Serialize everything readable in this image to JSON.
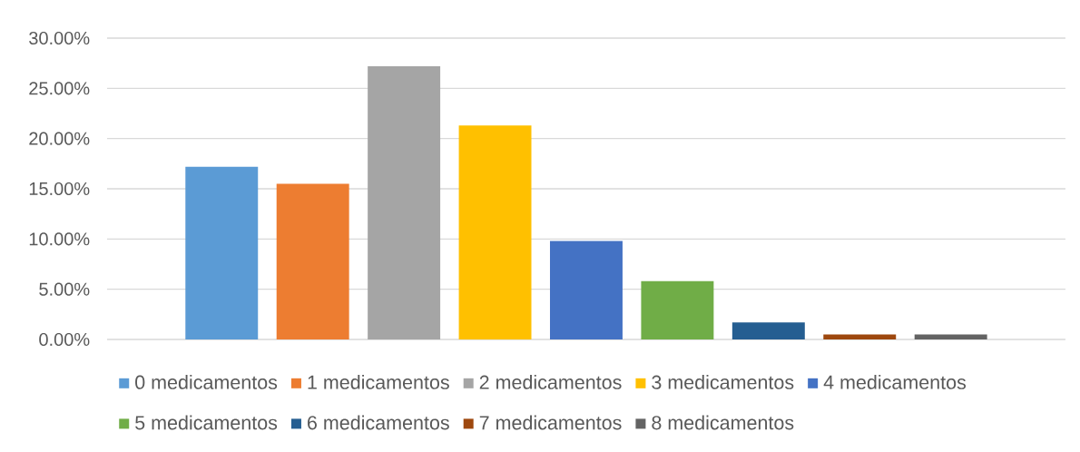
{
  "chart_data": {
    "type": "bar",
    "categories": [
      null
    ],
    "series": [
      {
        "name": "0 medicamentos",
        "color": "#5b9bd5",
        "values": [
          17.2
        ]
      },
      {
        "name": "1 medicamentos",
        "color": "#ed7d31",
        "values": [
          15.5
        ]
      },
      {
        "name": "2 medicamentos",
        "color": "#a5a5a5",
        "values": [
          27.2
        ]
      },
      {
        "name": "3 medicamentos",
        "color": "#ffc000",
        "values": [
          21.3
        ]
      },
      {
        "name": "4 medicamentos",
        "color": "#4472c4",
        "values": [
          9.8
        ]
      },
      {
        "name": "5 medicamentos",
        "color": "#70ad47",
        "values": [
          5.8
        ]
      },
      {
        "name": "6 medicamentos",
        "color": "#255e91",
        "values": [
          1.7
        ]
      },
      {
        "name": "7 medicamentos",
        "color": "#9e480e",
        "values": [
          0.5
        ]
      },
      {
        "name": "8 medicamentos",
        "color": "#636363",
        "values": [
          0.5
        ]
      }
    ],
    "ylim": [
      0,
      30
    ],
    "yticks": [
      {
        "value": 0,
        "label": "0.00%"
      },
      {
        "value": 5,
        "label": "5.00%"
      },
      {
        "value": 10,
        "label": "10.00%"
      },
      {
        "value": 15,
        "label": "15.00%"
      },
      {
        "value": 20,
        "label": "20.00%"
      },
      {
        "value": 25,
        "label": "25.00%"
      },
      {
        "value": 30,
        "label": "30.00%"
      }
    ],
    "grid": "y",
    "legend": "bottom",
    "tick_labels": "y"
  }
}
